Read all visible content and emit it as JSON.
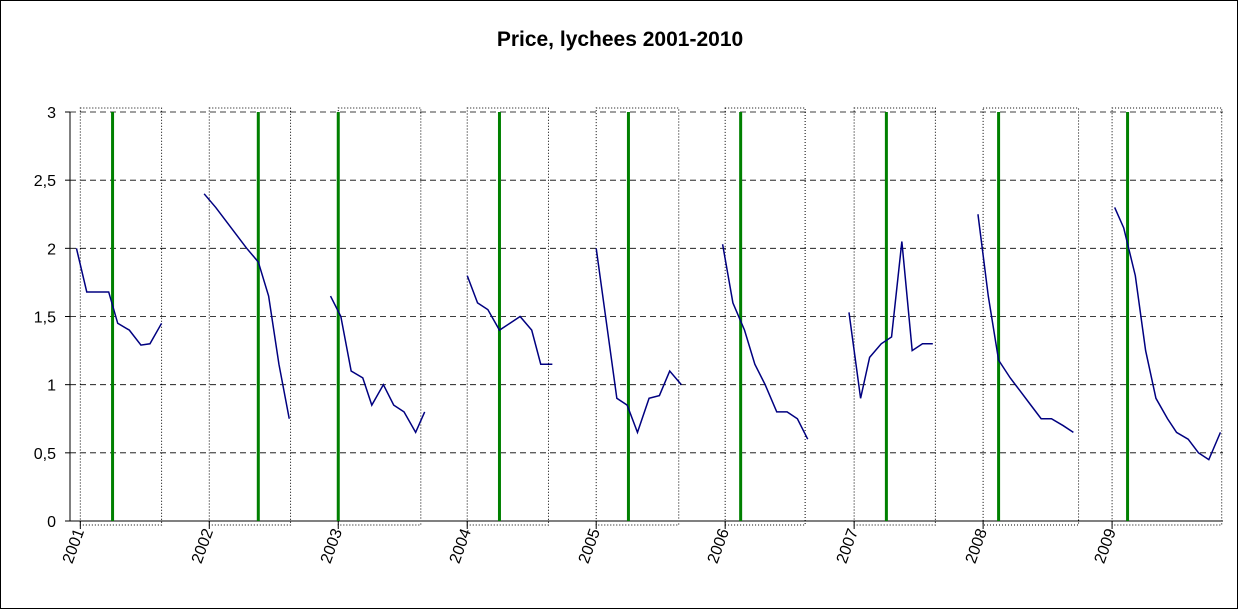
{
  "chart_data": {
    "type": "line",
    "title": "Price, lychees 2001-2010",
    "x": [
      2000.97,
      2001.05,
      2001.13,
      2001.22,
      2001.29,
      2001.38,
      2001.47,
      2001.54,
      2001.63,
      2001.8,
      2001.96,
      2002.05,
      2002.13,
      2002.21,
      2002.29,
      2002.38,
      2002.46,
      2002.54,
      2002.62,
      2002.8,
      2002.94,
      2003.02,
      2003.1,
      2003.19,
      2003.26,
      2003.35,
      2003.43,
      2003.51,
      2003.6,
      2003.67,
      2003.8,
      2004.0,
      2004.08,
      2004.16,
      2004.25,
      2004.33,
      2004.41,
      2004.5,
      2004.57,
      2004.66,
      2004.8,
      2005.0,
      2005.08,
      2005.16,
      2005.24,
      2005.32,
      2005.41,
      2005.49,
      2005.57,
      2005.66,
      2005.8,
      2005.98,
      2006.06,
      2006.15,
      2006.23,
      2006.31,
      2006.4,
      2006.48,
      2006.56,
      2006.64,
      2006.8,
      2006.96,
      2007.05,
      2007.12,
      2007.21,
      2007.29,
      2007.37,
      2007.45,
      2007.53,
      2007.61,
      2007.8,
      2007.96,
      2008.04,
      2008.12,
      2008.21,
      2008.29,
      2008.37,
      2008.45,
      2008.53,
      2008.62,
      2008.7,
      2008.85,
      2009.02,
      2009.09,
      2009.18,
      2009.26,
      2009.34,
      2009.43,
      2009.5,
      2009.59,
      2009.67,
      2009.75,
      2009.84
    ],
    "series": [
      {
        "color": "#000080",
        "values": [
          2.0,
          1.68,
          1.68,
          1.68,
          1.45,
          1.4,
          1.29,
          1.3,
          1.45,
          null,
          2.4,
          2.3,
          2.2,
          2.1,
          2.0,
          1.9,
          1.65,
          1.15,
          0.75,
          null,
          1.65,
          1.5,
          1.1,
          1.05,
          0.85,
          1.0,
          0.85,
          0.8,
          0.65,
          0.8,
          null,
          1.8,
          1.6,
          1.55,
          1.4,
          1.45,
          1.5,
          1.4,
          1.15,
          1.15,
          null,
          2.0,
          1.45,
          0.9,
          0.85,
          0.65,
          0.9,
          0.92,
          1.1,
          1.0,
          null,
          2.03,
          1.6,
          1.4,
          1.15,
          1.0,
          0.8,
          0.8,
          0.75,
          0.6,
          null,
          1.53,
          0.9,
          1.2,
          1.3,
          1.35,
          2.05,
          1.25,
          1.3,
          1.3,
          null,
          2.25,
          1.65,
          1.18,
          1.05,
          0.95,
          0.85,
          0.75,
          0.75,
          0.7,
          0.65,
          null,
          2.3,
          2.15,
          1.8,
          1.25,
          0.9,
          0.75,
          0.65,
          0.6,
          0.5,
          0.45,
          0.65
        ]
      }
    ],
    "markers": {
      "color": "#008000",
      "x": [
        2001.25,
        2002.38,
        2003.0,
        2004.25,
        2005.25,
        2006.12,
        2007.25,
        2008.12,
        2009.12
      ]
    },
    "spans": [
      [
        2001,
        2001.63
      ],
      [
        2002,
        2002.63
      ],
      [
        2003,
        2003.64
      ],
      [
        2004,
        2004.63
      ],
      [
        2005,
        2005.64
      ],
      [
        2006,
        2006.62
      ],
      [
        2007,
        2007.63
      ],
      [
        2008,
        2008.74
      ],
      [
        2009,
        2009.85
      ]
    ],
    "xlim": [
      2000.92,
      2009.86
    ],
    "xticks": [
      2001,
      2002,
      2003,
      2004,
      2005,
      2006,
      2007,
      2008,
      2009
    ],
    "ylim": [
      0,
      3
    ],
    "yticks": [
      0,
      {
        "value": 0.5,
        "label": "0,5"
      },
      1,
      {
        "value": 1.5,
        "label": "1,5"
      },
      2,
      {
        "value": 2.5,
        "label": "2,5"
      },
      3
    ],
    "grid": true
  }
}
